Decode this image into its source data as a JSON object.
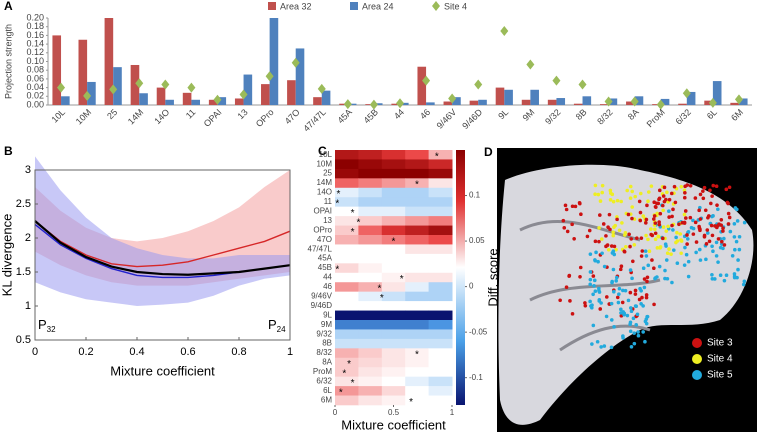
{
  "chart_data": [
    {
      "type": "bar",
      "panel": "A",
      "ylabel": "Projection strength",
      "categories": [
        "10L",
        "10M",
        "25",
        "14M",
        "14O",
        "11",
        "OPAI",
        "13",
        "OPro",
        "47O",
        "47/47L",
        "45A",
        "45B",
        "44",
        "46",
        "9/46V",
        "9/46D",
        "9L",
        "9M",
        "9/32",
        "8B",
        "8/32",
        "8A",
        "ProM",
        "6/32",
        "6L",
        "6M"
      ],
      "series": [
        {
          "name": "Area 32",
          "color": "#c0504d",
          "values": [
            0.16,
            0.15,
            0.2,
            0.092,
            0.04,
            0.028,
            0.012,
            0.015,
            0.048,
            0.057,
            0.018,
            0.003,
            0.002,
            0.003,
            0.088,
            0.008,
            0.01,
            0.04,
            0.012,
            0.012,
            0.003,
            0.002,
            0.008,
            0.002,
            0.003,
            0.01,
            0.005
          ]
        },
        {
          "name": "Area 24",
          "color": "#4f81bd",
          "values": [
            0.02,
            0.053,
            0.087,
            0.027,
            0.012,
            0.012,
            0.018,
            0.07,
            0.2,
            0.13,
            0.033,
            0.003,
            0.004,
            0.005,
            0.006,
            0.018,
            0.012,
            0.035,
            0.035,
            0.016,
            0.02,
            0.015,
            0.02,
            0.014,
            0.03,
            0.055,
            0.015
          ]
        },
        {
          "name": "Site 4",
          "color": "#9bbb59",
          "marker": "diamond",
          "values": [
            0.04,
            0.021,
            0.036,
            0.05,
            0.047,
            0.04,
            0.012,
            0.024,
            0.066,
            0.097,
            0.037,
            0.002,
            0.001,
            0.004,
            0.056,
            0.015,
            0.047,
            0.17,
            0.093,
            0.056,
            0.047,
            0.008,
            0.008,
            0.001,
            0.027,
            0.005,
            0.013
          ]
        }
      ],
      "ylim": [
        0,
        0.2
      ],
      "yticks": [
        {
          "value": 0,
          "label": "0.00"
        },
        {
          "value": 0.02,
          "label": "0.02"
        },
        {
          "value": 0.04,
          "label": "0.04"
        },
        {
          "value": 0.06,
          "label": "0.06"
        },
        {
          "value": 0.08,
          "label": "0.08"
        },
        {
          "value": 0.1,
          "label": "0.10"
        },
        {
          "value": 0.12,
          "label": "0.12"
        },
        {
          "value": 0.14,
          "label": "0.14"
        },
        {
          "value": 0.16,
          "label": "0.16"
        },
        {
          "value": 0.18,
          "label": "0.18"
        },
        {
          "value": 0.2,
          "label": "0.20"
        }
      ],
      "legend": "top"
    },
    {
      "type": "line",
      "panel": "B",
      "xlabel": "Mixture coefficient",
      "ylabel": "KL divergence",
      "x": [
        0,
        0.1,
        0.2,
        0.3,
        0.4,
        0.5,
        0.6,
        0.7,
        0.8,
        0.9,
        1
      ],
      "series": [
        {
          "color": "#d62728",
          "band_color": "#f4a0a0",
          "values": [
            2.25,
            1.95,
            1.75,
            1.62,
            1.58,
            1.6,
            1.65,
            1.75,
            1.85,
            1.95,
            2.1
          ],
          "upper": [
            2.75,
            2.4,
            2.15,
            2.0,
            1.95,
            2.0,
            2.1,
            2.25,
            2.45,
            2.75,
            3.0
          ],
          "lower": [
            1.8,
            1.6,
            1.45,
            1.35,
            1.3,
            1.3,
            1.3,
            1.35,
            1.4,
            1.45,
            1.5
          ]
        },
        {
          "color": "#2222cc",
          "band_color": "#9a9af0",
          "values": [
            2.2,
            1.9,
            1.7,
            1.55,
            1.45,
            1.42,
            1.42,
            1.45,
            1.5,
            1.55,
            1.6
          ],
          "upper": [
            3.2,
            2.7,
            2.3,
            2.0,
            1.85,
            1.75,
            1.7,
            1.7,
            1.75,
            1.75,
            1.75
          ],
          "lower": [
            1.35,
            1.2,
            1.1,
            1.05,
            1.0,
            1.02,
            1.05,
            1.15,
            1.3,
            1.4,
            1.45
          ]
        },
        {
          "color": "#000000",
          "values": [
            2.25,
            1.93,
            1.72,
            1.58,
            1.5,
            1.47,
            1.46,
            1.48,
            1.5,
            1.55,
            1.6
          ]
        }
      ],
      "xlim": [
        0,
        1
      ],
      "ylim": [
        0.5,
        3
      ],
      "xticks": [
        0,
        0.2,
        0.4,
        0.6,
        0.8,
        1
      ],
      "yticks": [
        0.5,
        1,
        1.5,
        2,
        2.5,
        3
      ],
      "annotations": [
        {
          "text": "P",
          "subscript": "32"
        },
        {
          "text": "P",
          "subscript": "24"
        }
      ]
    },
    {
      "type": "heatmap",
      "panel": "C",
      "xlabel": "Mixture coefficient",
      "colorbar_label": "Diff. score",
      "rows": [
        "10L",
        "10M",
        "25",
        "14M",
        "14O",
        "11",
        "OPAI",
        "13",
        "OPro",
        "47O",
        "47/47L",
        "45A",
        "45B",
        "44",
        "46",
        "9/46V",
        "9/46D",
        "9L",
        "9M",
        "9/32",
        "8B",
        "8/32",
        "8A",
        "ProM",
        "6/32",
        "6L",
        "6M"
      ],
      "x": [
        0.1,
        0.3,
        0.5,
        0.7,
        0.9
      ],
      "values": [
        [
          0.12,
          0.11,
          0.09,
          0.07,
          0.03
        ],
        [
          0.15,
          0.14,
          0.13,
          0.12,
          0.1
        ],
        [
          0.14,
          0.15,
          0.15,
          0.15,
          0.14
        ],
        [
          0.06,
          0.05,
          0.04,
          0.03,
          0.01
        ],
        [
          -0.01,
          -0.02,
          -0.03,
          -0.03,
          -0.02
        ],
        [
          -0.02,
          -0.03,
          -0.03,
          -0.03,
          -0.03
        ],
        [
          0,
          -0.01,
          -0.01,
          -0.02,
          -0.02
        ],
        [
          0.01,
          0.02,
          0.03,
          0.04,
          0.05
        ],
        [
          0.02,
          0.06,
          0.09,
          0.11,
          0.13
        ],
        [
          0.03,
          0.04,
          0.05,
          0.06,
          0.07
        ],
        [
          0,
          0,
          0,
          0.01,
          0.01
        ],
        [
          0,
          0,
          0,
          0,
          0
        ],
        [
          0.015,
          0.005,
          0,
          0,
          0
        ],
        [
          0,
          0,
          0.005,
          0.01,
          0.01
        ],
        [
          0.04,
          0.03,
          0.01,
          -0.01,
          -0.03
        ],
        [
          0,
          -0.01,
          -0.02,
          -0.03,
          -0.03
        ],
        [
          0,
          0,
          0,
          0,
          0
        ],
        [
          -0.13,
          -0.13,
          -0.13,
          -0.13,
          -0.13
        ],
        [
          -0.08,
          -0.08,
          -0.08,
          -0.08,
          -0.07
        ],
        [
          -0.03,
          -0.03,
          -0.03,
          -0.03,
          -0.03
        ],
        [
          -0.02,
          -0.02,
          -0.02,
          -0.02,
          -0.02
        ],
        [
          0.03,
          0.02,
          0.01,
          0.005,
          0
        ],
        [
          0.02,
          0.015,
          0.01,
          0.005,
          0
        ],
        [
          0.02,
          0.01,
          0.005,
          0,
          0
        ],
        [
          0.01,
          0.005,
          0,
          -0.01,
          -0.02
        ],
        [
          0.04,
          0.03,
          0.015,
          0,
          -0.01
        ],
        [
          0.02,
          0.01,
          0.005,
          0,
          0
        ]
      ],
      "stars": [
        0.87,
        null,
        null,
        0.7,
        0.03,
        0.02,
        0.15,
        0.2,
        0.15,
        0.5,
        null,
        null,
        0.02,
        0.57,
        0.38,
        0.4,
        null,
        null,
        null,
        null,
        null,
        0.7,
        0.12,
        0.08,
        0.15,
        0.05,
        0.65
      ],
      "star_symbol": "*",
      "xlim": [
        0,
        1
      ],
      "xticks": [
        0,
        0.5,
        1
      ],
      "clim": [
        -0.13,
        0.15
      ],
      "cticks": [
        0.1,
        0.05,
        0,
        -0.05,
        -0.1
      ]
    },
    {
      "type": "image",
      "panel": "D",
      "legend": [
        {
          "name": "Site 3",
          "color": "#cc1111"
        },
        {
          "name": "Site 4",
          "color": "#eeee22"
        },
        {
          "name": "Site 5",
          "color": "#22aadd"
        }
      ]
    }
  ]
}
